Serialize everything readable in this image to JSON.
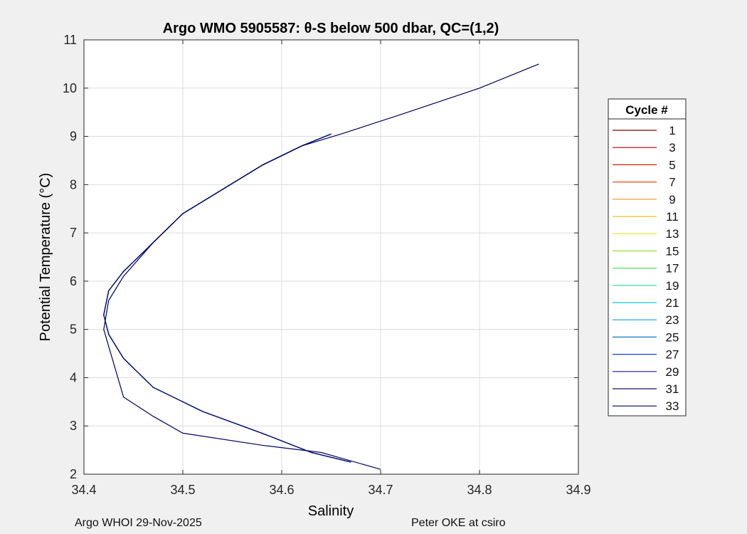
{
  "chart_data": {
    "type": "line",
    "title": "Argo WMO 5905587: θ-S below 500 dbar,  QC=(1,2)",
    "xlabel": "Salinity",
    "ylabel": "Potential Temperature (°C)",
    "xlim": [
      34.4,
      34.9
    ],
    "ylim": [
      2,
      11
    ],
    "xticks": [
      "34.4",
      "34.5",
      "34.6",
      "34.7",
      "34.8",
      "34.9"
    ],
    "yticks": [
      "2",
      "3",
      "4",
      "5",
      "6",
      "7",
      "8",
      "9",
      "10",
      "11"
    ],
    "grid": true,
    "legend_title": "Cycle #",
    "legend_position": "outside-right",
    "legend": [
      {
        "label": "1",
        "color": "#800000"
      },
      {
        "label": "3",
        "color": "#b40000"
      },
      {
        "label": "5",
        "color": "#e01a00"
      },
      {
        "label": "7",
        "color": "#f24a10"
      },
      {
        "label": "9",
        "color": "#f5901a"
      },
      {
        "label": "11",
        "color": "#f0c020"
      },
      {
        "label": "13",
        "color": "#e6e020"
      },
      {
        "label": "15",
        "color": "#98e030"
      },
      {
        "label": "17",
        "color": "#4ce060"
      },
      {
        "label": "19",
        "color": "#20d8a0"
      },
      {
        "label": "21",
        "color": "#10c8d0"
      },
      {
        "label": "23",
        "color": "#0aa0d8"
      },
      {
        "label": "25",
        "color": "#0a78c8"
      },
      {
        "label": "27",
        "color": "#1040c8"
      },
      {
        "label": "29",
        "color": "#1818a8"
      },
      {
        "label": "31",
        "color": "#101070"
      },
      {
        "label": "33",
        "color": "#000060"
      }
    ],
    "series": [
      {
        "name": "1",
        "color": "#800000",
        "x": [
          34.67,
          34.63,
          34.58,
          34.52,
          34.47,
          34.44,
          34.425,
          34.42,
          34.425,
          34.44,
          34.47,
          34.5,
          34.54,
          34.58,
          34.62,
          34.65
        ],
        "y": [
          2.25,
          2.45,
          2.85,
          3.3,
          3.8,
          4.4,
          4.9,
          5.3,
          5.8,
          6.2,
          6.8,
          7.4,
          7.9,
          8.4,
          8.8,
          9.05
        ]
      },
      {
        "name": "3",
        "color": "#b40000",
        "x": [
          34.67,
          34.63,
          34.58,
          34.52,
          34.47,
          34.44,
          34.425,
          34.42,
          34.425,
          34.44,
          34.47,
          34.5,
          34.54,
          34.58,
          34.62,
          34.65
        ],
        "y": [
          2.25,
          2.45,
          2.85,
          3.3,
          3.8,
          4.4,
          4.9,
          5.3,
          5.8,
          6.2,
          6.8,
          7.4,
          7.9,
          8.4,
          8.8,
          9.05
        ]
      },
      {
        "name": "5",
        "color": "#e01a00",
        "x": [
          34.67,
          34.63,
          34.58,
          34.52,
          34.47,
          34.44,
          34.425,
          34.42,
          34.425,
          34.44,
          34.47,
          34.5,
          34.54,
          34.58,
          34.62,
          34.65
        ],
        "y": [
          2.25,
          2.45,
          2.85,
          3.3,
          3.8,
          4.4,
          4.9,
          5.3,
          5.8,
          6.2,
          6.8,
          7.4,
          7.9,
          8.4,
          8.8,
          9.05
        ]
      },
      {
        "name": "7",
        "color": "#f24a10",
        "x": [
          34.67,
          34.63,
          34.58,
          34.52,
          34.47,
          34.44,
          34.425,
          34.42,
          34.425,
          34.44,
          34.47,
          34.5,
          34.54,
          34.58,
          34.62,
          34.65
        ],
        "y": [
          2.25,
          2.45,
          2.85,
          3.3,
          3.8,
          4.4,
          4.9,
          5.3,
          5.8,
          6.2,
          6.8,
          7.4,
          7.9,
          8.4,
          8.8,
          9.05
        ]
      },
      {
        "name": "9",
        "color": "#f5901a",
        "x": [
          34.67,
          34.63,
          34.58,
          34.52,
          34.47,
          34.44,
          34.425,
          34.42,
          34.425,
          34.44,
          34.47,
          34.5,
          34.54,
          34.58,
          34.62,
          34.65
        ],
        "y": [
          2.25,
          2.45,
          2.85,
          3.3,
          3.8,
          4.4,
          4.9,
          5.3,
          5.8,
          6.2,
          6.8,
          7.4,
          7.9,
          8.4,
          8.8,
          9.05
        ]
      },
      {
        "name": "11",
        "color": "#f0c020",
        "x": [
          34.67,
          34.63,
          34.58,
          34.52,
          34.47,
          34.44,
          34.425,
          34.42,
          34.425,
          34.44,
          34.47,
          34.5,
          34.54,
          34.58,
          34.62,
          34.65
        ],
        "y": [
          2.25,
          2.45,
          2.85,
          3.3,
          3.8,
          4.4,
          4.9,
          5.3,
          5.8,
          6.2,
          6.8,
          7.4,
          7.9,
          8.4,
          8.8,
          9.05
        ]
      },
      {
        "name": "13",
        "color": "#e6e020",
        "x": [
          34.67,
          34.63,
          34.58,
          34.52,
          34.47,
          34.44,
          34.425,
          34.42,
          34.425,
          34.44,
          34.47,
          34.5,
          34.54,
          34.58,
          34.62,
          34.65
        ],
        "y": [
          2.25,
          2.45,
          2.85,
          3.3,
          3.8,
          4.4,
          4.9,
          5.3,
          5.8,
          6.2,
          6.8,
          7.4,
          7.9,
          8.4,
          8.8,
          9.05
        ]
      },
      {
        "name": "15",
        "color": "#98e030",
        "x": [
          34.67,
          34.63,
          34.58,
          34.52,
          34.47,
          34.44,
          34.425,
          34.42,
          34.425,
          34.44,
          34.47,
          34.5,
          34.54,
          34.58,
          34.62,
          34.65
        ],
        "y": [
          2.25,
          2.45,
          2.85,
          3.3,
          3.8,
          4.4,
          4.9,
          5.3,
          5.8,
          6.2,
          6.8,
          7.4,
          7.9,
          8.4,
          8.8,
          9.05
        ]
      },
      {
        "name": "17",
        "color": "#4ce060",
        "x": [
          34.67,
          34.63,
          34.58,
          34.52,
          34.47,
          34.44,
          34.425,
          34.42,
          34.425,
          34.44,
          34.47,
          34.5,
          34.54,
          34.58,
          34.62,
          34.65
        ],
        "y": [
          2.25,
          2.45,
          2.85,
          3.3,
          3.8,
          4.4,
          4.9,
          5.3,
          5.8,
          6.2,
          6.8,
          7.4,
          7.9,
          8.4,
          8.8,
          9.05
        ]
      },
      {
        "name": "19",
        "color": "#20d8a0",
        "x": [
          34.67,
          34.63,
          34.58,
          34.52,
          34.47,
          34.44,
          34.425,
          34.42,
          34.425,
          34.44,
          34.47,
          34.5,
          34.54,
          34.58,
          34.62,
          34.65
        ],
        "y": [
          2.25,
          2.45,
          2.85,
          3.3,
          3.8,
          4.4,
          4.9,
          5.3,
          5.8,
          6.2,
          6.8,
          7.4,
          7.9,
          8.4,
          8.8,
          9.05
        ]
      },
      {
        "name": "21",
        "color": "#10c8d0",
        "x": [
          34.67,
          34.63,
          34.58,
          34.52,
          34.47,
          34.44,
          34.425,
          34.42,
          34.425,
          34.44,
          34.47,
          34.5,
          34.54,
          34.58,
          34.62,
          34.65
        ],
        "y": [
          2.25,
          2.45,
          2.85,
          3.3,
          3.8,
          4.4,
          4.9,
          5.3,
          5.8,
          6.2,
          6.8,
          7.4,
          7.9,
          8.4,
          8.8,
          9.05
        ]
      },
      {
        "name": "23",
        "color": "#0aa0d8",
        "x": [
          34.67,
          34.63,
          34.58,
          34.52,
          34.47,
          34.44,
          34.425,
          34.42,
          34.425,
          34.44,
          34.47,
          34.5,
          34.54,
          34.58,
          34.62,
          34.65
        ],
        "y": [
          2.25,
          2.45,
          2.85,
          3.3,
          3.8,
          4.4,
          4.9,
          5.3,
          5.8,
          6.2,
          6.8,
          7.4,
          7.9,
          8.4,
          8.8,
          9.05
        ]
      },
      {
        "name": "25",
        "color": "#0a78c8",
        "x": [
          34.67,
          34.63,
          34.58,
          34.52,
          34.47,
          34.44,
          34.425,
          34.42,
          34.425,
          34.44,
          34.47,
          34.5,
          34.54,
          34.58,
          34.62,
          34.65
        ],
        "y": [
          2.25,
          2.45,
          2.85,
          3.3,
          3.8,
          4.4,
          4.9,
          5.3,
          5.8,
          6.2,
          6.8,
          7.4,
          7.9,
          8.4,
          8.8,
          9.05
        ]
      },
      {
        "name": "27",
        "color": "#1040c8",
        "x": [
          34.67,
          34.63,
          34.58,
          34.52,
          34.47,
          34.44,
          34.425,
          34.42,
          34.425,
          34.44,
          34.47,
          34.5,
          34.54,
          34.58,
          34.62,
          34.65
        ],
        "y": [
          2.25,
          2.45,
          2.85,
          3.3,
          3.8,
          4.4,
          4.9,
          5.3,
          5.8,
          6.2,
          6.8,
          7.4,
          7.9,
          8.4,
          8.8,
          9.05
        ]
      },
      {
        "name": "29",
        "color": "#1818a8",
        "x": [
          34.67,
          34.63,
          34.58,
          34.52,
          34.47,
          34.44,
          34.425,
          34.42,
          34.425,
          34.44,
          34.47,
          34.5,
          34.54,
          34.58,
          34.62,
          34.65
        ],
        "y": [
          2.25,
          2.45,
          2.85,
          3.3,
          3.8,
          4.4,
          4.9,
          5.3,
          5.8,
          6.2,
          6.8,
          7.4,
          7.9,
          8.4,
          8.8,
          9.05
        ]
      },
      {
        "name": "31",
        "color": "#101070",
        "x": [
          34.67,
          34.63,
          34.58,
          34.52,
          34.47,
          34.44,
          34.425,
          34.42,
          34.425,
          34.44,
          34.47,
          34.5,
          34.54,
          34.58,
          34.62,
          34.65
        ],
        "y": [
          2.25,
          2.45,
          2.85,
          3.3,
          3.8,
          4.4,
          4.9,
          5.3,
          5.8,
          6.2,
          6.8,
          7.4,
          7.9,
          8.4,
          8.8,
          9.05
        ]
      },
      {
        "name": "33",
        "color": "#000060",
        "x": [
          34.7,
          34.64,
          34.58,
          34.5,
          34.47,
          34.44,
          34.43,
          34.42,
          34.425,
          34.44,
          34.47,
          34.5,
          34.54,
          34.58,
          34.62,
          34.66,
          34.72,
          34.8,
          34.86
        ],
        "y": [
          2.1,
          2.45,
          2.6,
          2.85,
          3.2,
          3.6,
          4.3,
          5.0,
          5.6,
          6.1,
          6.8,
          7.4,
          7.9,
          8.4,
          8.8,
          9.05,
          9.45,
          10.0,
          10.5
        ]
      }
    ]
  },
  "footer": {
    "left": "Argo WHOI 29-Nov-2025",
    "right": "Peter OKE at csiro"
  }
}
